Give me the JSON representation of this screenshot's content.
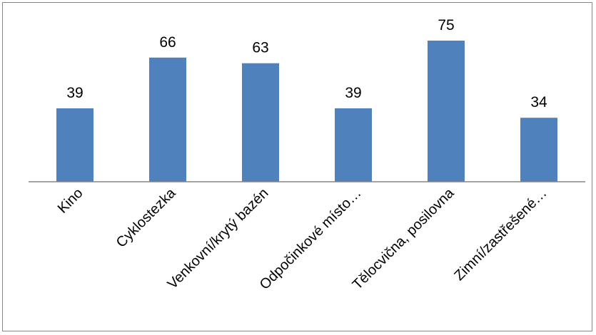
{
  "chart_data": {
    "type": "bar",
    "categories": [
      "Kino",
      "Cyklostezka",
      "Venkovní/krytý bazén",
      "Odpočinkové místo…",
      "Tělocvična, posilovna",
      "Zimní/zastřešené…"
    ],
    "values": [
      39,
      66,
      63,
      39,
      75,
      34
    ],
    "title": "",
    "xlabel": "",
    "ylabel": "",
    "ylim": [
      0,
      80
    ],
    "grid": false,
    "legend": "none",
    "data_labels": true,
    "bar_color": "#4F81BD"
  }
}
